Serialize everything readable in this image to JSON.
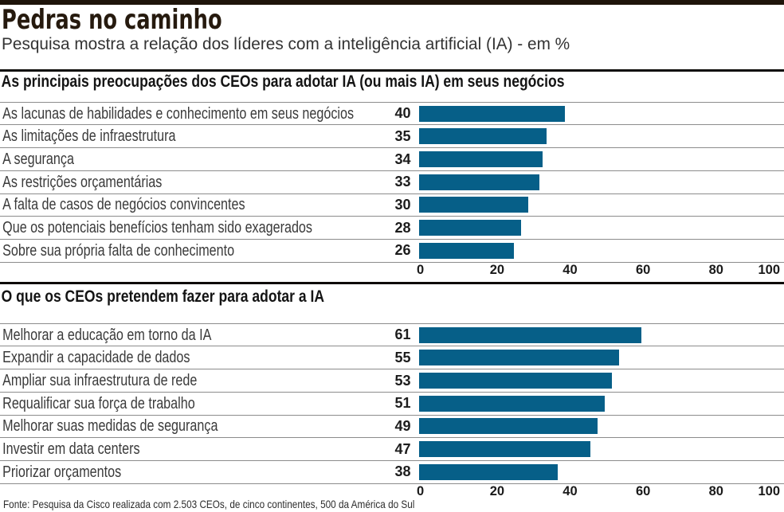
{
  "header": {
    "title": "Pedras no caminho",
    "subtitle": "Pesquisa mostra a relação dos líderes com a inteligência artificial (IA) - em %"
  },
  "colors": {
    "bar": "#065f88",
    "top_bar": "#1e140a",
    "section_rule": "#0d0b08",
    "row_separator": "#8c8c8c"
  },
  "chart_data": [
    {
      "type": "bar",
      "orientation": "horizontal",
      "title": "As principais preocupações dos CEOs para adotar IA (ou mais IA) em seus negócios",
      "categories": [
        "As lacunas de habilidades e conhecimento em seus negócios",
        "As limitações de infraestrutura",
        "A segurança",
        "As restrições orçamentárias",
        "A falta de casos de negócios convincentes",
        "Que os potenciais benefícios tenham sido exagerados",
        "Sobre sua própria falta de conhecimento"
      ],
      "values": [
        40,
        35,
        34,
        33,
        30,
        28,
        26
      ],
      "xlim": [
        0,
        100
      ],
      "ticks": [
        0,
        20,
        40,
        60,
        80,
        100
      ],
      "unit": "%"
    },
    {
      "type": "bar",
      "orientation": "horizontal",
      "title": "O que os CEOs pretendem fazer para adotar a IA",
      "categories": [
        "Melhorar a educação em torno da IA",
        "Expandir a capacidade de dados",
        "Ampliar sua infraestrutura de rede",
        "Requalificar sua força de trabalho",
        "Melhorar suas medidas de segurança",
        "Investir em data centers",
        "Priorizar orçamentos"
      ],
      "values": [
        61,
        55,
        53,
        51,
        49,
        47,
        38
      ],
      "xlim": [
        0,
        100
      ],
      "ticks": [
        0,
        20,
        40,
        60,
        80,
        100
      ],
      "unit": "%"
    }
  ],
  "footer": {
    "source": "Fonte: Pesquisa da Cisco realizada com 2.503 CEOs, de cinco continentes, 500 da América do Sul"
  }
}
